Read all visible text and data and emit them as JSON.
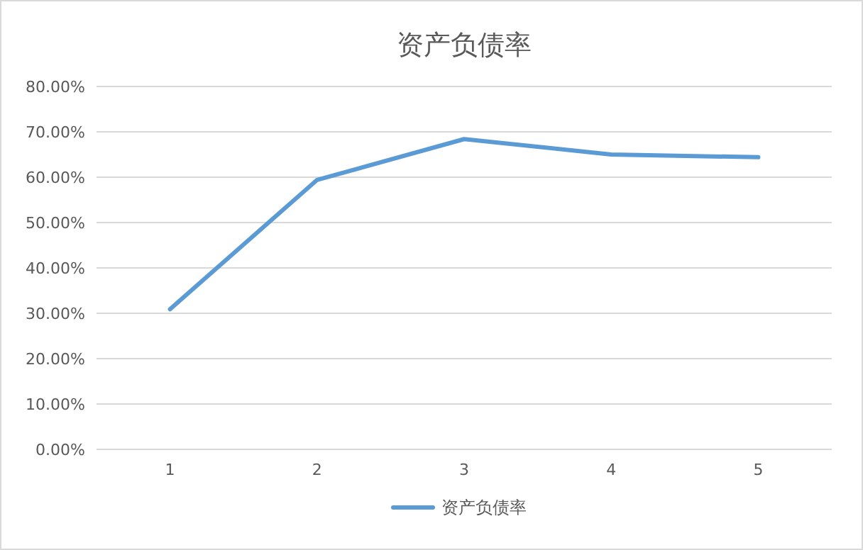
{
  "chart_data": {
    "type": "line",
    "title": "资产负债率",
    "categories": [
      "1",
      "2",
      "3",
      "4",
      "5"
    ],
    "series": [
      {
        "name": "资产负债率",
        "color": "#5b9bd5",
        "values": [
          30.9,
          59.4,
          68.4,
          65.0,
          64.4
        ]
      }
    ],
    "ylim": [
      0,
      80
    ],
    "yticks": [
      {
        "value": 0,
        "label": "0.00%"
      },
      {
        "value": 10,
        "label": "10.00%"
      },
      {
        "value": 20,
        "label": "20.00%"
      },
      {
        "value": 30,
        "label": "30.00%"
      },
      {
        "value": 40,
        "label": "40.00%"
      },
      {
        "value": 50,
        "label": "50.00%"
      },
      {
        "value": 60,
        "label": "60.00%"
      },
      {
        "value": 70,
        "label": "70.00%"
      },
      {
        "value": 80,
        "label": "80.00%"
      }
    ],
    "grid": "y",
    "legend": "bottom",
    "marker": "none",
    "line_style": "solid"
  }
}
